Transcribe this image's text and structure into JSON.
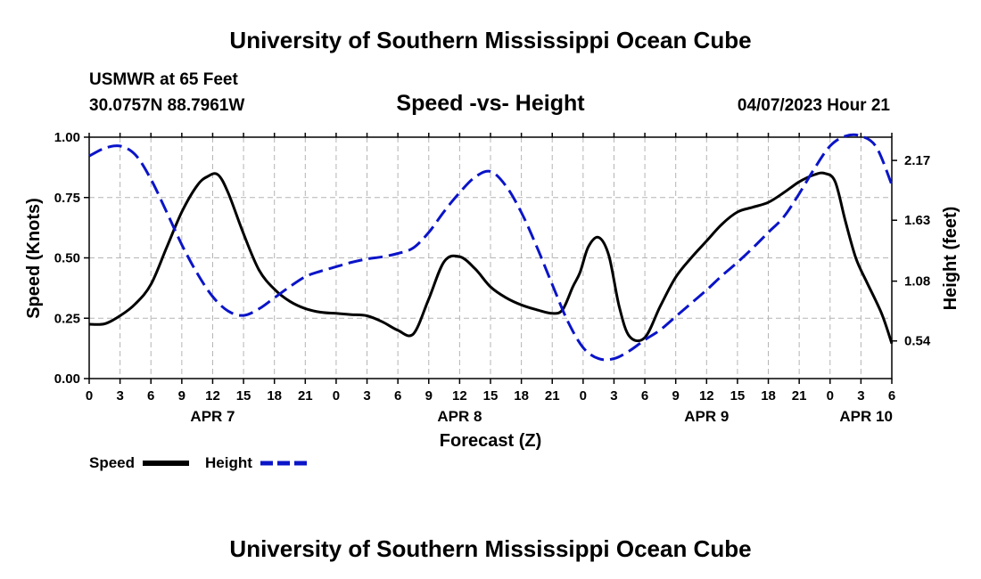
{
  "header": {
    "title": "University of Southern Mississippi Ocean Cube",
    "station": "USMWR at 65 Feet",
    "coords": "30.0757N  88.7961W",
    "subtitle": "Speed -vs- Height",
    "datetime": "04/07/2023 Hour 21"
  },
  "footer": {
    "title": "University of Southern Mississippi Ocean Cube"
  },
  "colors": {
    "speed": "#000000",
    "height": "#0a14c8",
    "grid": "#b4b4b4"
  },
  "chart_data": {
    "type": "line",
    "title": "Speed -vs- Height",
    "xlabel": "Forecast (Z)",
    "ylabel": "Speed (Knots)",
    "y2label": "Height (feet)",
    "xlim": [
      0,
      78
    ],
    "ylim": [
      0,
      1.0
    ],
    "y2lim": [
      0.2,
      2.38
    ],
    "x_tick_labels": [
      "0",
      "3",
      "6",
      "9",
      "12",
      "15",
      "18",
      "21",
      "0",
      "3",
      "6",
      "9",
      "12",
      "15",
      "18",
      "21",
      "0",
      "3",
      "6",
      "9",
      "12",
      "15",
      "18",
      "21",
      "0",
      "3",
      "6"
    ],
    "y_ticks": [
      0.0,
      0.25,
      0.5,
      0.75,
      1.0
    ],
    "y_tick_labels": [
      "0.00",
      "0.25",
      "0.50",
      "0.75",
      "1.00"
    ],
    "y2_ticks": [
      0.54,
      1.08,
      1.63,
      2.17
    ],
    "y2_tick_labels": [
      "0.54",
      "1.08",
      "1.63",
      "2.17"
    ],
    "day_labels": [
      {
        "label": "APR 7",
        "x": 12
      },
      {
        "label": "APR 8",
        "x": 36
      },
      {
        "label": "APR 9",
        "x": 60
      },
      {
        "label": "APR 10",
        "x": 75.5
      }
    ],
    "grid": true,
    "legend": [
      {
        "name": "Speed",
        "style": "solid"
      },
      {
        "name": "Height",
        "style": "dashed"
      }
    ],
    "series": [
      {
        "name": "Speed",
        "axis": "left",
        "style": "solid",
        "x": [
          0,
          1.5,
          3,
          4.5,
          6,
          7.5,
          9,
          10.5,
          11.5,
          12.5,
          13.5,
          15,
          16.5,
          18,
          19.5,
          21,
          22.5,
          24,
          25.5,
          27,
          28.5,
          30,
          31.5,
          33,
          34.5,
          36,
          37.5,
          39,
          40.5,
          42,
          43.5,
          45,
          46,
          47,
          47.7,
          48.5,
          49.5,
          50.5,
          51.5,
          52.5,
          54,
          55.5,
          57,
          58.5,
          60,
          61.5,
          63,
          64.5,
          66,
          67.5,
          69,
          70.5,
          71.5,
          72.5,
          73.5,
          74.5,
          75.5,
          77,
          78
        ],
        "values": [
          0.225,
          0.227,
          0.26,
          0.31,
          0.39,
          0.54,
          0.69,
          0.8,
          0.837,
          0.845,
          0.77,
          0.6,
          0.45,
          0.37,
          0.32,
          0.29,
          0.275,
          0.27,
          0.265,
          0.26,
          0.235,
          0.2,
          0.185,
          0.33,
          0.485,
          0.505,
          0.455,
          0.38,
          0.335,
          0.305,
          0.285,
          0.27,
          0.285,
          0.38,
          0.44,
          0.545,
          0.585,
          0.51,
          0.3,
          0.175,
          0.17,
          0.3,
          0.42,
          0.5,
          0.57,
          0.64,
          0.69,
          0.71,
          0.73,
          0.77,
          0.815,
          0.845,
          0.85,
          0.815,
          0.65,
          0.5,
          0.405,
          0.27,
          0.145
        ]
      },
      {
        "name": "Height",
        "axis": "right",
        "style": "dashed",
        "x": [
          0,
          1.5,
          3,
          4.5,
          6,
          7.5,
          9,
          10.5,
          12,
          13.5,
          15,
          16.5,
          18,
          19.5,
          21,
          22.5,
          24,
          25.5,
          27,
          28.5,
          30,
          31.5,
          33,
          34.5,
          36,
          37.5,
          39,
          40.5,
          42,
          43.5,
          45,
          46.5,
          48,
          49.5,
          51,
          52.5,
          54,
          55.5,
          57,
          58.5,
          60,
          61.5,
          63,
          64.5,
          66,
          67.5,
          69,
          70.5,
          72,
          73.5,
          75,
          76.5,
          78
        ],
        "values": [
          2.21,
          2.28,
          2.3,
          2.22,
          2.0,
          1.71,
          1.41,
          1.15,
          0.94,
          0.81,
          0.77,
          0.83,
          0.93,
          1.03,
          1.12,
          1.17,
          1.21,
          1.25,
          1.28,
          1.3,
          1.33,
          1.38,
          1.52,
          1.71,
          1.88,
          2.02,
          2.07,
          1.94,
          1.7,
          1.39,
          1.05,
          0.72,
          0.48,
          0.38,
          0.38,
          0.45,
          0.55,
          0.64,
          0.76,
          0.88,
          1.0,
          1.13,
          1.25,
          1.38,
          1.52,
          1.66,
          1.87,
          2.1,
          2.3,
          2.39,
          2.39,
          2.29,
          1.95
        ]
      }
    ]
  }
}
